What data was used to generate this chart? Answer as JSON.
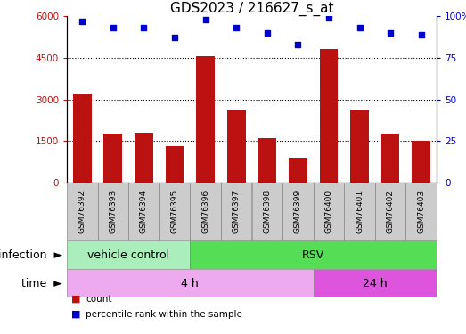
{
  "title": "GDS2023 / 216627_s_at",
  "samples": [
    "GSM76392",
    "GSM76393",
    "GSM76394",
    "GSM76395",
    "GSM76396",
    "GSM76397",
    "GSM76398",
    "GSM76399",
    "GSM76400",
    "GSM76401",
    "GSM76402",
    "GSM76403"
  ],
  "counts": [
    3200,
    1750,
    1800,
    1300,
    4550,
    2600,
    1600,
    900,
    4800,
    2600,
    1750,
    1500
  ],
  "percentile_ranks": [
    97,
    93,
    93,
    87,
    98,
    93,
    90,
    83,
    99,
    93,
    90,
    89
  ],
  "ylim_left": [
    0,
    6000
  ],
  "ylim_right": [
    0,
    100
  ],
  "yticks_left": [
    0,
    1500,
    3000,
    4500,
    6000
  ],
  "yticks_right": [
    0,
    25,
    50,
    75,
    100
  ],
  "bar_color": "#bb1111",
  "dot_color": "#0000cc",
  "grid_color": "black",
  "infection_groups": [
    {
      "label": "vehicle control",
      "start": 0,
      "end": 4,
      "color": "#aaeebb"
    },
    {
      "label": "RSV",
      "start": 4,
      "end": 12,
      "color": "#55dd55"
    }
  ],
  "time_groups": [
    {
      "label": "4 h",
      "start": 0,
      "end": 8,
      "color": "#eeaaee"
    },
    {
      "label": "24 h",
      "start": 8,
      "end": 12,
      "color": "#dd55dd"
    }
  ],
  "legend_items": [
    {
      "label": "count",
      "color": "#bb1111"
    },
    {
      "label": "percentile rank within the sample",
      "color": "#0000cc"
    }
  ],
  "title_fontsize": 11,
  "tick_fontsize": 7.5,
  "label_fontsize": 9,
  "sample_fontsize": 6.5
}
